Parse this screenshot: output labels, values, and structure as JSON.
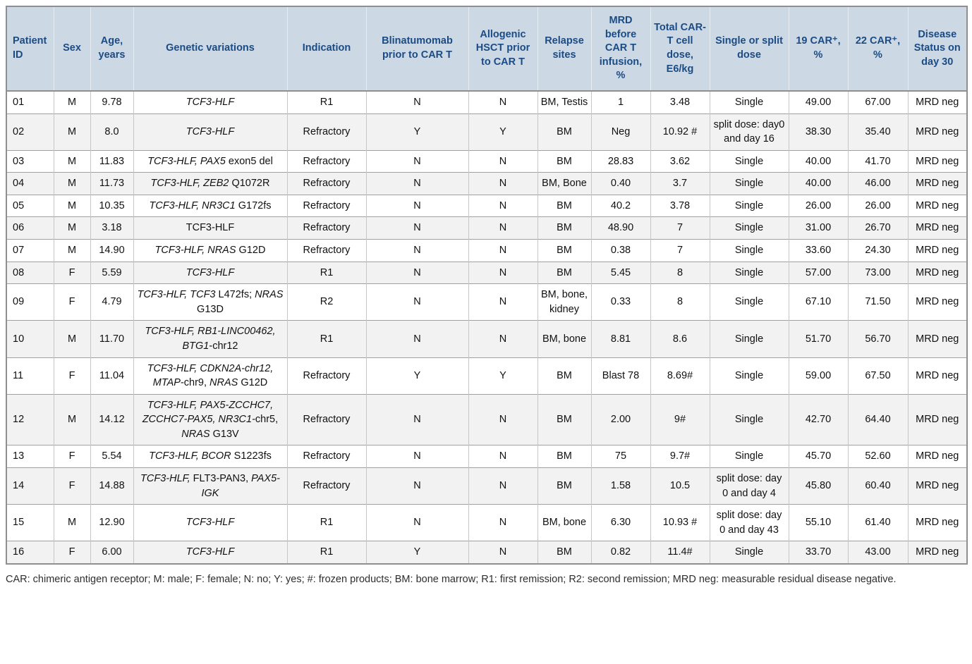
{
  "table": {
    "columns": [
      {
        "key": "id",
        "label": "Patient ID"
      },
      {
        "key": "sex",
        "label": "Sex"
      },
      {
        "key": "age",
        "label": "Age, years"
      },
      {
        "key": "genetics",
        "label": "Genetic variations"
      },
      {
        "key": "indication",
        "label": "Indication"
      },
      {
        "key": "blinatumomab",
        "label": "Blinatumomab prior to CAR T"
      },
      {
        "key": "hsct",
        "label": "Allogenic HSCT prior to CAR T"
      },
      {
        "key": "relapse",
        "label": "Relapse sites"
      },
      {
        "key": "mrd",
        "label": "MRD before CAR T infusion, %"
      },
      {
        "key": "dose",
        "label": "Total CAR-T cell dose, E6/kg"
      },
      {
        "key": "dosing",
        "label": "Single or split dose"
      },
      {
        "key": "car19",
        "label": "19 CAR⁺, %"
      },
      {
        "key": "car22",
        "label": "22 CAR⁺, %"
      },
      {
        "key": "status",
        "label": "Disease Status on day 30"
      }
    ],
    "rows": [
      {
        "id": "01",
        "sex": "M",
        "age": "9.78",
        "genetics": [
          {
            "t": "TCF3-HLF",
            "i": true
          }
        ],
        "indication": "R1",
        "blinatumomab": "N",
        "hsct": "N",
        "relapse": "BM, Testis",
        "mrd": "1",
        "dose": "3.48",
        "dosing": "Single",
        "car19": "49.00",
        "car22": "67.00",
        "status": "MRD neg"
      },
      {
        "id": "02",
        "sex": "M",
        "age": "8.0",
        "genetics": [
          {
            "t": "TCF3-HLF",
            "i": true
          }
        ],
        "indication": "Refractory",
        "blinatumomab": "Y",
        "hsct": "Y",
        "relapse": "BM",
        "mrd": "Neg",
        "dose": "10.92 #",
        "dosing": "split dose: day0 and day 16",
        "car19": "38.30",
        "car22": "35.40",
        "status": "MRD neg"
      },
      {
        "id": "03",
        "sex": "M",
        "age": "11.83",
        "genetics": [
          {
            "t": "TCF3-HLF, PAX5",
            "i": true
          },
          {
            "t": " exon5 del",
            "i": false
          }
        ],
        "indication": "Refractory",
        "blinatumomab": "N",
        "hsct": "N",
        "relapse": "BM",
        "mrd": "28.83",
        "dose": "3.62",
        "dosing": "Single",
        "car19": "40.00",
        "car22": "41.70",
        "status": "MRD neg"
      },
      {
        "id": "04",
        "sex": "M",
        "age": "11.73",
        "genetics": [
          {
            "t": "TCF3-HLF, ZEB2",
            "i": true
          },
          {
            "t": " Q1072R",
            "i": false
          }
        ],
        "indication": "Refractory",
        "blinatumomab": "N",
        "hsct": "N",
        "relapse": "BM, Bone",
        "mrd": "0.40",
        "dose": "3.7",
        "dosing": "Single",
        "car19": "40.00",
        "car22": "46.00",
        "status": "MRD neg"
      },
      {
        "id": "05",
        "sex": "M",
        "age": "10.35",
        "genetics": [
          {
            "t": "TCF3-HLF, NR3C1",
            "i": true
          },
          {
            "t": " G172fs",
            "i": false
          }
        ],
        "indication": "Refractory",
        "blinatumomab": "N",
        "hsct": "N",
        "relapse": "BM",
        "mrd": "40.2",
        "dose": "3.78",
        "dosing": "Single",
        "car19": "26.00",
        "car22": "26.00",
        "status": "MRD neg"
      },
      {
        "id": "06",
        "sex": "M",
        "age": "3.18",
        "genetics": [
          {
            "t": "TCF3-HLF",
            "i": false
          }
        ],
        "indication": "Refractory",
        "blinatumomab": "N",
        "hsct": "N",
        "relapse": "BM",
        "mrd": "48.90",
        "dose": "7",
        "dosing": "Single",
        "car19": "31.00",
        "car22": "26.70",
        "status": "MRD neg"
      },
      {
        "id": "07",
        "sex": "M",
        "age": "14.90",
        "genetics": [
          {
            "t": "TCF3-HLF, NRAS",
            "i": true
          },
          {
            "t": " G12D",
            "i": false
          }
        ],
        "indication": "Refractory",
        "blinatumomab": "N",
        "hsct": "N",
        "relapse": "BM",
        "mrd": "0.38",
        "dose": "7",
        "dosing": "Single",
        "car19": "33.60",
        "car22": "24.30",
        "status": "MRD neg"
      },
      {
        "id": "08",
        "sex": "F",
        "age": "5.59",
        "genetics": [
          {
            "t": "TCF3-HLF",
            "i": true
          }
        ],
        "indication": "R1",
        "blinatumomab": "N",
        "hsct": "N",
        "relapse": "BM",
        "mrd": "5.45",
        "dose": "8",
        "dosing": "Single",
        "car19": "57.00",
        "car22": "73.00",
        "status": "MRD neg"
      },
      {
        "id": "09",
        "sex": "F",
        "age": "4.79",
        "genetics": [
          {
            "t": "TCF3-HLF, TCF3",
            "i": true
          },
          {
            "t": " L472fs; ",
            "i": false
          },
          {
            "t": "NRAS",
            "i": true
          },
          {
            "t": " G13D",
            "i": false
          }
        ],
        "indication": "R2",
        "blinatumomab": "N",
        "hsct": "N",
        "relapse": "BM, bone, kidney",
        "mrd": "0.33",
        "dose": "8",
        "dosing": "Single",
        "car19": "67.10",
        "car22": "71.50",
        "status": "MRD neg"
      },
      {
        "id": "10",
        "sex": "M",
        "age": "11.70",
        "genetics": [
          {
            "t": "TCF3-HLF, RB1-LINC00462, BTG1",
            "i": true
          },
          {
            "t": "-chr12",
            "i": false
          }
        ],
        "indication": "R1",
        "blinatumomab": "N",
        "hsct": "N",
        "relapse": "BM, bone",
        "mrd": "8.81",
        "dose": "8.6",
        "dosing": "Single",
        "car19": "51.70",
        "car22": "56.70",
        "status": "MRD neg"
      },
      {
        "id": "11",
        "sex": "F",
        "age": "11.04",
        "genetics": [
          {
            "t": "TCF3-HLF, CDKN2A-chr12, MTAP",
            "i": true
          },
          {
            "t": "-chr9, ",
            "i": false
          },
          {
            "t": "NRAS",
            "i": true
          },
          {
            "t": " G12D",
            "i": false
          }
        ],
        "indication": "Refractory",
        "blinatumomab": "Y",
        "hsct": "Y",
        "relapse": "BM",
        "mrd": "Blast 78",
        "dose": "8.69#",
        "dosing": "Single",
        "car19": "59.00",
        "car22": "67.50",
        "status": "MRD neg"
      },
      {
        "id": "12",
        "sex": "M",
        "age": "14.12",
        "genetics": [
          {
            "t": "TCF3-HLF, PAX5-ZCCHC7, ZCCHC7-PAX5, NR3C1-",
            "i": true
          },
          {
            "t": "chr5, ",
            "i": false
          },
          {
            "t": "NRAS",
            "i": true
          },
          {
            "t": " G13V",
            "i": false
          }
        ],
        "indication": "Refractory",
        "blinatumomab": "N",
        "hsct": "N",
        "relapse": "BM",
        "mrd": "2.00",
        "dose": "9#",
        "dosing": "Single",
        "car19": "42.70",
        "car22": "64.40",
        "status": "MRD neg"
      },
      {
        "id": "13",
        "sex": "F",
        "age": "5.54",
        "genetics": [
          {
            "t": "TCF3-HLF, BCOR",
            "i": true
          },
          {
            "t": " S1223fs",
            "i": false
          }
        ],
        "indication": "Refractory",
        "blinatumomab": "N",
        "hsct": "N",
        "relapse": "BM",
        "mrd": "75",
        "dose": "9.7#",
        "dosing": "Single",
        "car19": "45.70",
        "car22": "52.60",
        "status": "MRD neg"
      },
      {
        "id": "14",
        "sex": "F",
        "age": "14.88",
        "genetics": [
          {
            "t": "TCF3-HLF,",
            "i": true
          },
          {
            "t": " FLT3-PAN3, ",
            "i": false
          },
          {
            "t": "PAX5-IGK",
            "i": true
          }
        ],
        "indication": "Refractory",
        "blinatumomab": "N",
        "hsct": "N",
        "relapse": "BM",
        "mrd": "1.58",
        "dose": "10.5",
        "dosing": "split dose: day 0 and day 4",
        "car19": "45.80",
        "car22": "60.40",
        "status": "MRD neg"
      },
      {
        "id": "15",
        "sex": "M",
        "age": "12.90",
        "genetics": [
          {
            "t": "TCF3-HLF",
            "i": true
          }
        ],
        "indication": "R1",
        "blinatumomab": "N",
        "hsct": "N",
        "relapse": "BM, bone",
        "mrd": "6.30",
        "dose": "10.93 #",
        "dosing": "split dose: day 0 and day 43",
        "car19": "55.10",
        "car22": "61.40",
        "status": "MRD neg"
      },
      {
        "id": "16",
        "sex": "F",
        "age": "6.00",
        "genetics": [
          {
            "t": "TCF3-HLF",
            "i": true
          }
        ],
        "indication": "R1",
        "blinatumomab": "Y",
        "hsct": "N",
        "relapse": "BM",
        "mrd": "0.82",
        "dose": "11.4#",
        "dosing": "Single",
        "car19": "33.70",
        "car22": "43.00",
        "status": "MRD neg"
      }
    ]
  },
  "footnote": {
    "text": "CAR: chimeric antigen receptor; M: male; F: female; N: no; Y: yes; #: frozen products; BM: bone marrow; R1: first remission; R2: second remission; MRD neg: measurable residual disease negative."
  },
  "colors": {
    "header_background": "#ccd9e4",
    "header_text": "#1b4b85",
    "row_alternate_background": "#f2f2f2",
    "row_separator": "#a0a0a0",
    "column_separator": "#c6c6c6",
    "outer_border": "#8f8f8f"
  }
}
